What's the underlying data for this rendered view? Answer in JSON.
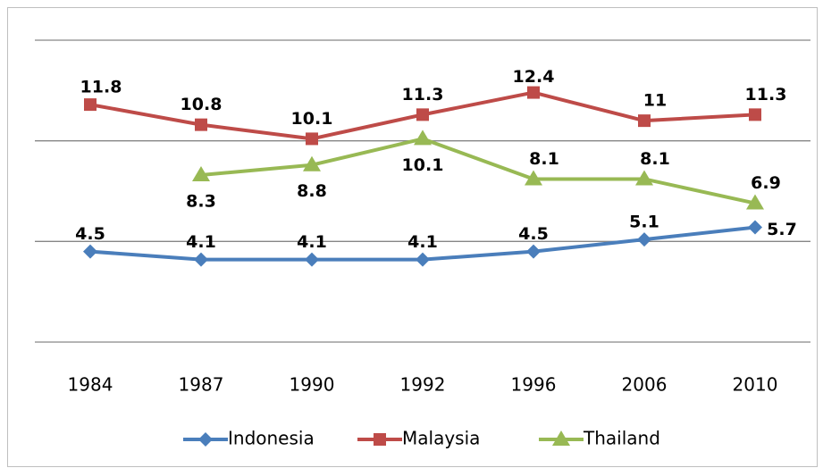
{
  "chart_data": {
    "type": "line",
    "categories": [
      "1984",
      "1987",
      "1990",
      "1992",
      "1996",
      "2006",
      "2010"
    ],
    "series": [
      {
        "name": "Indonesia",
        "color": "#4a7ebb",
        "marker": "diamond",
        "values": [
          4.5,
          4.1,
          4.1,
          4.1,
          4.5,
          5.1,
          5.7
        ]
      },
      {
        "name": "Malaysia",
        "color": "#be4b48",
        "marker": "square",
        "values": [
          11.8,
          10.8,
          10.1,
          11.3,
          12.4,
          11,
          11.3
        ]
      },
      {
        "name": "Thailand",
        "color": "#98b954",
        "marker": "triangle",
        "values": [
          null,
          8.3,
          8.8,
          10.1,
          8.1,
          8.1,
          6.9
        ]
      }
    ],
    "ylim": [
      0,
      15
    ],
    "yticks": [
      0,
      5,
      10,
      15
    ],
    "grid": true,
    "legend": "bottom"
  }
}
